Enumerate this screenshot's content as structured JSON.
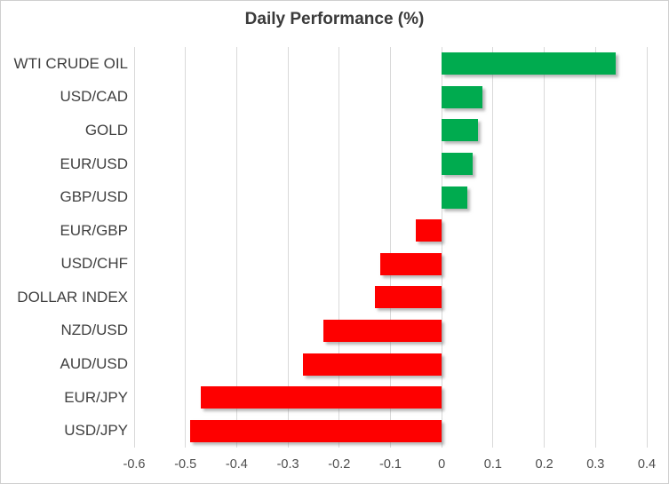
{
  "chart_data": {
    "type": "bar",
    "orientation": "horizontal",
    "title": "Daily Performance (%)",
    "categories": [
      "WTI CRUDE OIL",
      "USD/CAD",
      "GOLD",
      "EUR/USD",
      "GBP/USD",
      "EUR/GBP",
      "USD/CHF",
      "DOLLAR INDEX",
      "NZD/USD",
      "AUD/USD",
      "EUR/JPY",
      "USD/JPY"
    ],
    "values": [
      0.34,
      0.08,
      0.07,
      0.06,
      0.05,
      -0.05,
      -0.12,
      -0.13,
      -0.23,
      -0.27,
      -0.47,
      -0.49
    ],
    "xlim": [
      -0.6,
      0.4
    ],
    "xticks": [
      -0.6,
      -0.5,
      -0.4,
      -0.3,
      -0.2,
      -0.1,
      0,
      0.1,
      0.2,
      0.3,
      0.4
    ],
    "xtick_labels": [
      "-0.6",
      "-0.5",
      "-0.4",
      "-0.3",
      "-0.2",
      "-0.1",
      "0",
      "0.1",
      "0.2",
      "0.3",
      "0.4"
    ],
    "positive_color": "#00AB4F",
    "negative_color": "#FE0000",
    "gridline_color": "#D9D9D9",
    "grid": true,
    "legend": false,
    "xlabel": "",
    "ylabel": ""
  }
}
